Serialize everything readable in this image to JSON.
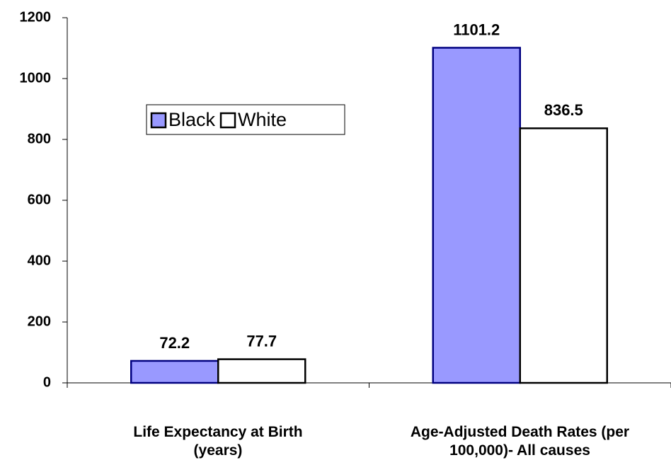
{
  "chart_data": {
    "type": "bar",
    "categories": [
      "Life Expectancy at Birth\n(years)",
      "Age-Adjusted Death Rates (per\n100,000)- All causes"
    ],
    "series": [
      {
        "name": "Black",
        "color": "#9999ff",
        "values": [
          72.2,
          1101.2
        ]
      },
      {
        "name": "White",
        "color": "#ffffff",
        "values": [
          77.7,
          836.5
        ]
      }
    ],
    "ylim": [
      0,
      1200
    ],
    "yticks": [
      0,
      200,
      400,
      600,
      800,
      1000,
      1200
    ],
    "grid": false
  }
}
